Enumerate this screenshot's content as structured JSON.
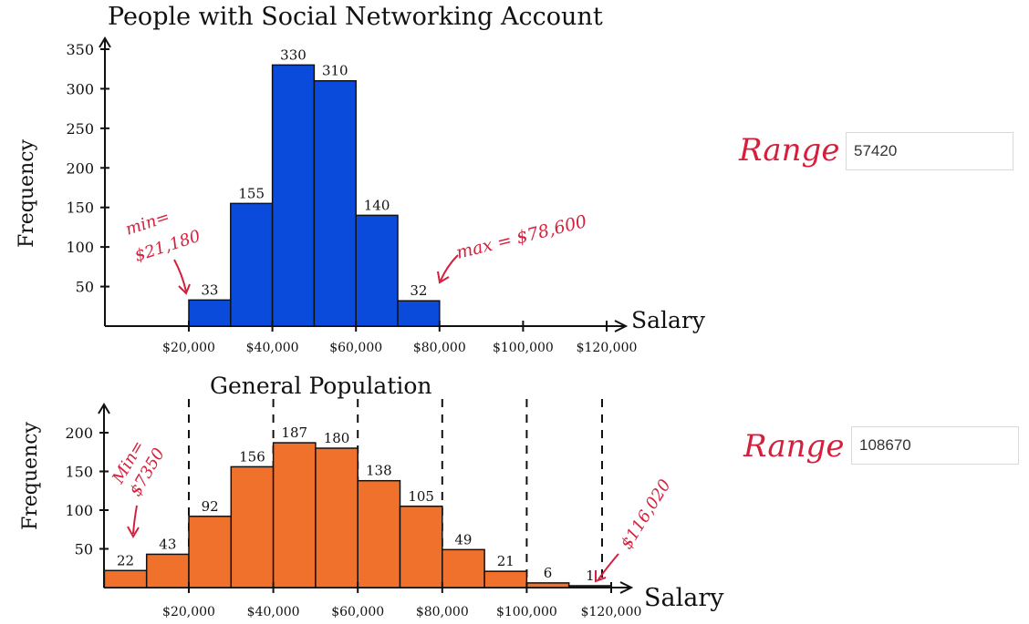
{
  "chart_data": [
    {
      "type": "bar",
      "title": "People with Social Networking Account",
      "xlabel": "Salary",
      "ylabel": "Frequency",
      "ylim": [
        0,
        350
      ],
      "yticks": [
        50,
        100,
        150,
        200,
        250,
        300,
        350
      ],
      "x_bins": [
        [
          20000,
          30000
        ],
        [
          30000,
          40000
        ],
        [
          40000,
          50000
        ],
        [
          50000,
          60000
        ],
        [
          60000,
          70000
        ],
        [
          70000,
          80000
        ]
      ],
      "values": [
        33,
        155,
        330,
        310,
        140,
        32
      ],
      "value_labels": [
        "33",
        "155",
        "330",
        "310",
        "140",
        "32"
      ],
      "bar_color": "#0b4bdc",
      "x_tick_labels": [
        "$20,000",
        "$40,000",
        "$60,000",
        "$80,000",
        "$100,000",
        "$120,000"
      ],
      "annotations": {
        "min": "min=\n$21,180",
        "max": "max = $78,600"
      }
    },
    {
      "type": "bar",
      "title": "General Population",
      "xlabel": "Salary",
      "ylabel": "Frequency",
      "ylim": [
        0,
        220
      ],
      "yticks": [
        50,
        100,
        150,
        200
      ],
      "x_bins": [
        [
          0,
          10000
        ],
        [
          10000,
          20000
        ],
        [
          20000,
          30000
        ],
        [
          30000,
          40000
        ],
        [
          40000,
          50000
        ],
        [
          50000,
          60000
        ],
        [
          60000,
          70000
        ],
        [
          70000,
          80000
        ],
        [
          80000,
          90000
        ],
        [
          90000,
          100000
        ],
        [
          100000,
          110000
        ],
        [
          110000,
          120000
        ]
      ],
      "values": [
        22,
        43,
        92,
        156,
        187,
        180,
        138,
        105,
        49,
        21,
        6,
        1
      ],
      "value_labels": [
        "22",
        "43",
        "92",
        "156",
        "187",
        "180",
        "138",
        "105",
        "49",
        "21",
        "6",
        "1"
      ],
      "bar_color": "#f0712b",
      "x_tick_labels": [
        "$20,000",
        "$40,000",
        "$60,000",
        "$80,000",
        "$100,000",
        "$120,000"
      ],
      "annotations": {
        "min": "Min=\n$7350",
        "max": "$116,020"
      }
    }
  ],
  "ranges": [
    {
      "label": "Range =",
      "value": "57420"
    },
    {
      "label": "Range =",
      "value": "108670"
    }
  ]
}
